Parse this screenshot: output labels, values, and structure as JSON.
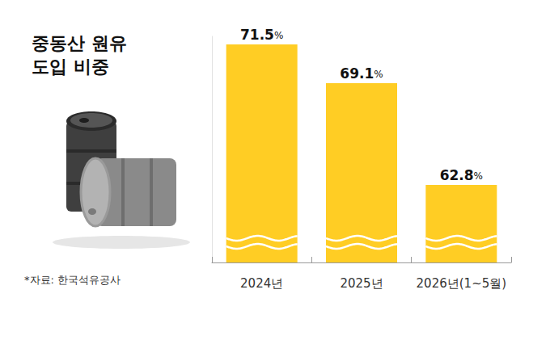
{
  "chart_data": {
    "type": "bar",
    "title": "중동산 원유\n도입 비중",
    "source": "*자료: 한국석유공사",
    "categories": [
      "2024년",
      "2025년",
      "2026년(1~5월)"
    ],
    "values": [
      71.5,
      69.1,
      62.8
    ],
    "value_labels": [
      "71.5%",
      "69.1%",
      "62.8%"
    ],
    "color": "#FFCD24",
    "ylim": [
      58,
      72
    ],
    "data_labels": true,
    "tick_labels": "x",
    "grid": false
  }
}
